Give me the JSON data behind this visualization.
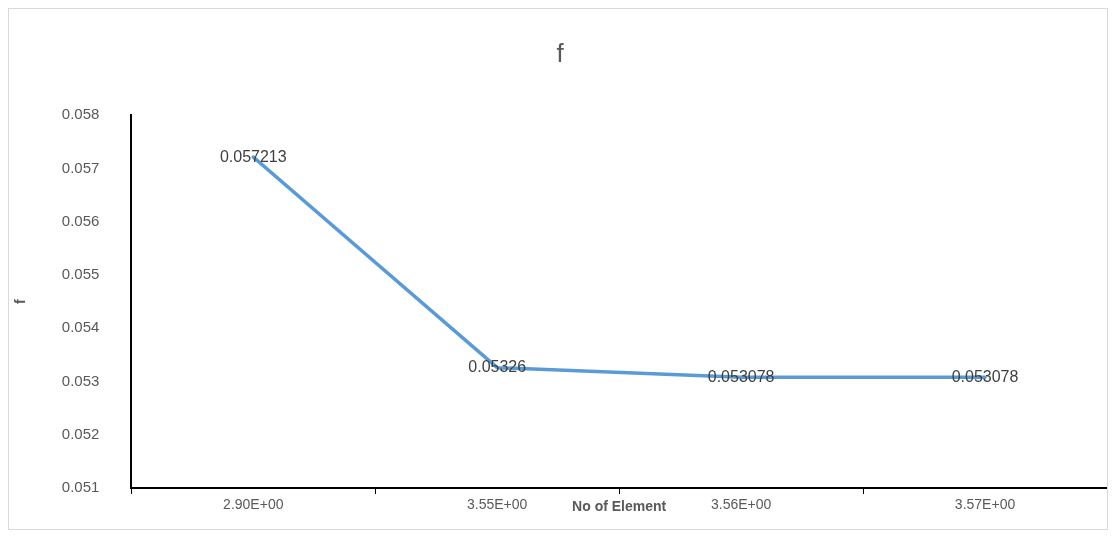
{
  "chart_data": {
    "type": "line",
    "title": "f",
    "xlabel": "No of Element",
    "ylabel": "f",
    "categories": [
      "2.90E+00",
      "3.55E+00",
      "3.56E+00",
      "3.57E+00"
    ],
    "series": [
      {
        "color": "#5b9bd5",
        "values": [
          0.057213,
          0.05326,
          0.053078,
          0.053078
        ]
      }
    ],
    "ylim": [
      0.051,
      0.058
    ],
    "yticks": [
      0.051,
      0.052,
      0.053,
      0.054,
      0.055,
      0.056,
      0.057,
      0.058
    ],
    "grid": false,
    "legend": false,
    "marker": "none",
    "line_style": "solid",
    "data_labels": true
  }
}
